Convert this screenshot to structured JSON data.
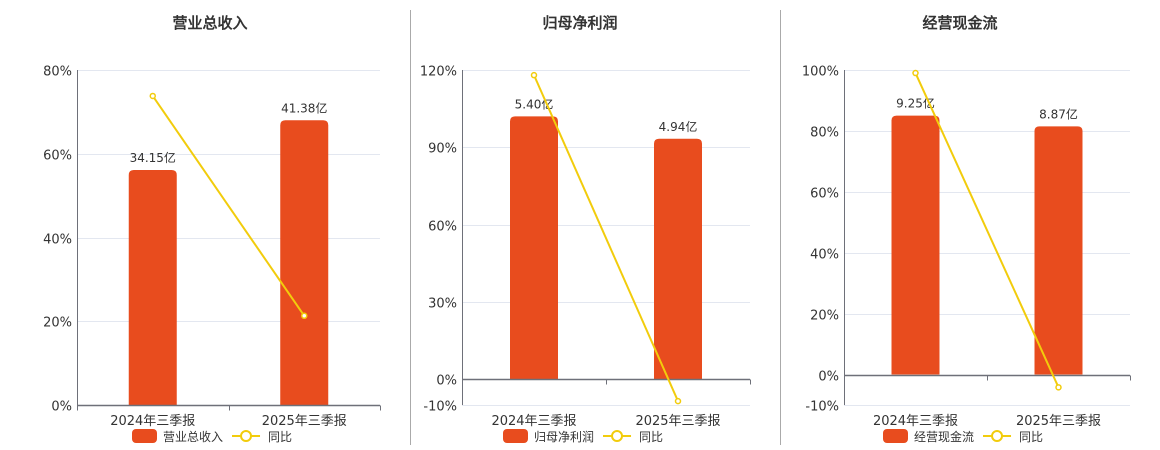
{
  "colors": {
    "bar": "#E84C1E",
    "line": "#F2CC0C",
    "grid": "#E3E7F0",
    "axis": "#6E7079",
    "separator": "#AAAAAA"
  },
  "chart_data": [
    {
      "type": "bar+line",
      "title": "营业总收入",
      "categories": [
        "2024年三季报",
        "2025年三季报"
      ],
      "ylim": [
        0,
        80
      ],
      "yticks": [
        0,
        20,
        40,
        60,
        80
      ],
      "ytick_labels": [
        "0%",
        "20%",
        "40%",
        "60%",
        "80%"
      ],
      "grid": true,
      "legend": "bottom",
      "series": [
        {
          "name": "营业总收入",
          "kind": "bar",
          "values": [
            34.15,
            41.38
          ],
          "labels": [
            "34.15亿",
            "41.38亿"
          ]
        },
        {
          "name": "同比",
          "kind": "line",
          "values": [
            73.8,
            21.3
          ]
        }
      ]
    },
    {
      "type": "bar+line",
      "title": "归母净利润",
      "categories": [
        "2024年三季报",
        "2025年三季报"
      ],
      "ylim": [
        -10,
        120
      ],
      "yticks": [
        -10,
        0,
        30,
        60,
        90,
        120
      ],
      "ytick_labels": [
        "-10%",
        "0%",
        "30%",
        "60%",
        "90%",
        "120%"
      ],
      "grid": true,
      "legend": "bottom",
      "series": [
        {
          "name": "归母净利润",
          "kind": "bar",
          "values": [
            5.4,
            4.94
          ],
          "labels": [
            "5.40亿",
            "4.94亿"
          ]
        },
        {
          "name": "同比",
          "kind": "line",
          "values": [
            118,
            -8.5
          ]
        }
      ]
    },
    {
      "type": "bar+line",
      "title": "经营现金流",
      "categories": [
        "2024年三季报",
        "2025年三季报"
      ],
      "ylim": [
        -10,
        100
      ],
      "yticks": [
        -10,
        0,
        20,
        40,
        60,
        80,
        100
      ],
      "ytick_labels": [
        "-10%",
        "0%",
        "20%",
        "40%",
        "60%",
        "80%",
        "100%"
      ],
      "grid": true,
      "legend": "bottom",
      "series": [
        {
          "name": "经营现金流",
          "kind": "bar",
          "values": [
            9.25,
            8.87
          ],
          "labels": [
            "9.25亿",
            "8.87亿"
          ]
        },
        {
          "name": "同比",
          "kind": "line",
          "values": [
            99,
            -4.2
          ]
        }
      ]
    }
  ]
}
